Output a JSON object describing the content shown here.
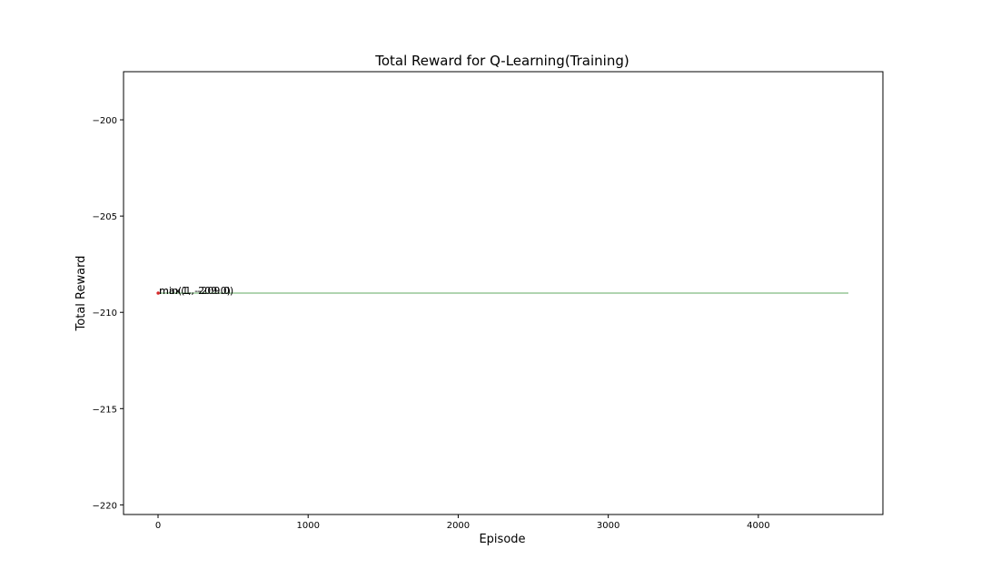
{
  "chart_data": {
    "type": "line",
    "title": "Total Reward for Q-Learning(Training)",
    "xlabel": "Episode",
    "ylabel": "Total Reward",
    "xlim": [
      -230,
      4830
    ],
    "ylim": [
      -220.5,
      -197.5
    ],
    "xticks": [
      0,
      1000,
      2000,
      3000,
      4000
    ],
    "xtick_labels": [
      "0",
      "1000",
      "2000",
      "3000",
      "4000"
    ],
    "yticks": [
      -200,
      -205,
      -210,
      -215,
      -220
    ],
    "ytick_labels": [
      "−200",
      "−205",
      "−210",
      "−215",
      "−220"
    ],
    "grid": false,
    "series": [
      {
        "color": "#2e8b2e",
        "x": [
          1,
          4600
        ],
        "y": [
          -209,
          -209
        ]
      }
    ],
    "points": [
      {
        "x": 1,
        "y": -209,
        "color": "#d62728"
      }
    ],
    "annotations": [
      {
        "text": "max(1, -209.0)",
        "x": 1,
        "y": -209
      },
      {
        "text": "min(1, -209.0)",
        "x": 1,
        "y": -209
      }
    ]
  }
}
